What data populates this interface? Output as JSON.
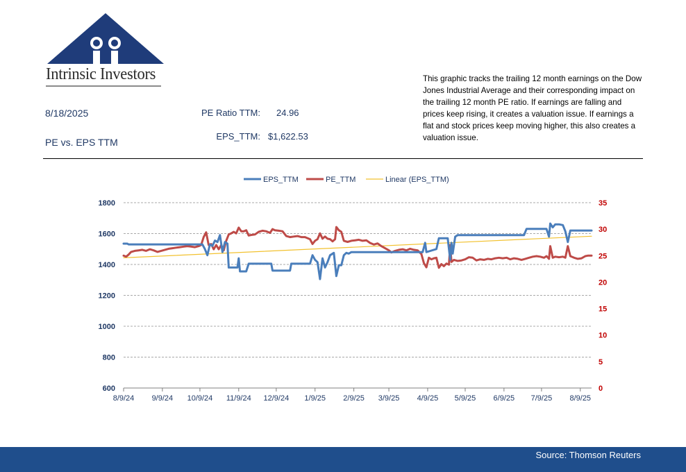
{
  "logo": {
    "text": "Intrinsic Investors"
  },
  "header": {
    "date": "8/18/2025",
    "subtitle": "PE vs. EPS TTM",
    "pe_label": "PE Ratio TTM:",
    "pe_value": "24.96",
    "eps_label": "EPS_TTM:",
    "eps_value": "$1,622.53",
    "description": "This graphic tracks the trailing 12 month earnings on the Dow Jones Industrial Average and their corresponding impact on the trailing 12 month PE ratio.  If earnings are falling and prices keep rising, it creates a valuation issue.  If earnings a flat and stock prices keep moving higher, this also creates a valuation issue."
  },
  "footer": {
    "source": "Source: Thomson Reuters"
  },
  "colors": {
    "eps": "#4a7ebb",
    "pe": "#be4b48",
    "trend": "#f2c12e",
    "axis_left": "#1f3864",
    "axis_right": "#c00000",
    "footer": "#1f4e8c"
  },
  "chart_data": {
    "type": "line",
    "legend_position": "top",
    "grid": true,
    "x_range": [
      "2024-08-09",
      "2025-08-18"
    ],
    "x_ticks": [
      "8/9/24",
      "9/9/24",
      "10/9/24",
      "11/9/24",
      "12/9/24",
      "1/9/25",
      "2/9/25",
      "3/9/25",
      "4/9/25",
      "5/9/25",
      "6/9/25",
      "7/9/25",
      "8/9/25"
    ],
    "x_tick_dates": [
      "2024-08-09",
      "2024-09-09",
      "2024-10-09",
      "2024-11-09",
      "2024-12-09",
      "2025-01-09",
      "2025-02-09",
      "2025-03-09",
      "2025-04-09",
      "2025-05-09",
      "2025-06-09",
      "2025-07-09",
      "2025-08-09"
    ],
    "y_left": {
      "min": 600,
      "max": 1800,
      "ticks": [
        600,
        800,
        1000,
        1200,
        1400,
        1600,
        1800
      ]
    },
    "y_right": {
      "min": 0,
      "max": 35,
      "ticks": [
        0,
        5,
        10,
        15,
        20,
        25,
        30,
        35
      ]
    },
    "series": [
      {
        "name": "EPS_TTM",
        "axis": "left",
        "color": "#4a7ebb",
        "points": [
          [
            "2024-08-09",
            1535
          ],
          [
            "2024-08-12",
            1535
          ],
          [
            "2024-08-13",
            1530
          ],
          [
            "2024-08-20",
            1530
          ],
          [
            "2024-09-01",
            1530
          ],
          [
            "2024-09-15",
            1530
          ],
          [
            "2024-10-01",
            1530
          ],
          [
            "2024-10-11",
            1530
          ],
          [
            "2024-10-13",
            1500
          ],
          [
            "2024-10-15",
            1460
          ],
          [
            "2024-10-17",
            1530
          ],
          [
            "2024-10-19",
            1520
          ],
          [
            "2024-10-21",
            1555
          ],
          [
            "2024-10-23",
            1545
          ],
          [
            "2024-10-25",
            1590
          ],
          [
            "2024-10-27",
            1480
          ],
          [
            "2024-10-29",
            1545
          ],
          [
            "2024-10-31",
            1535
          ],
          [
            "2024-11-01",
            1380
          ],
          [
            "2024-11-05",
            1380
          ],
          [
            "2024-11-08",
            1380
          ],
          [
            "2024-11-09",
            1440
          ],
          [
            "2024-11-10",
            1355
          ],
          [
            "2024-11-15",
            1355
          ],
          [
            "2024-11-17",
            1405
          ],
          [
            "2024-11-30",
            1405
          ],
          [
            "2024-12-05",
            1405
          ],
          [
            "2024-12-06",
            1360
          ],
          [
            "2024-12-20",
            1360
          ],
          [
            "2024-12-21",
            1405
          ],
          [
            "2024-12-31",
            1405
          ],
          [
            "2025-01-05",
            1405
          ],
          [
            "2025-01-07",
            1460
          ],
          [
            "2025-01-09",
            1430
          ],
          [
            "2025-01-11",
            1415
          ],
          [
            "2025-01-13",
            1305
          ],
          [
            "2025-01-15",
            1440
          ],
          [
            "2025-01-17",
            1380
          ],
          [
            "2025-01-19",
            1415
          ],
          [
            "2025-01-21",
            1460
          ],
          [
            "2025-01-24",
            1475
          ],
          [
            "2025-01-26",
            1325
          ],
          [
            "2025-01-28",
            1395
          ],
          [
            "2025-01-30",
            1395
          ],
          [
            "2025-02-01",
            1460
          ],
          [
            "2025-02-03",
            1475
          ],
          [
            "2025-02-05",
            1470
          ],
          [
            "2025-02-07",
            1480
          ],
          [
            "2025-02-15",
            1480
          ],
          [
            "2025-03-01",
            1480
          ],
          [
            "2025-03-15",
            1480
          ],
          [
            "2025-04-01",
            1480
          ],
          [
            "2025-04-05",
            1480
          ],
          [
            "2025-04-07",
            1540
          ],
          [
            "2025-04-08",
            1480
          ],
          [
            "2025-04-12",
            1490
          ],
          [
            "2025-04-16",
            1500
          ],
          [
            "2025-04-18",
            1570
          ],
          [
            "2025-04-22",
            1570
          ],
          [
            "2025-04-25",
            1570
          ],
          [
            "2025-04-27",
            1430
          ],
          [
            "2025-04-28",
            1540
          ],
          [
            "2025-04-29",
            1470
          ],
          [
            "2025-05-01",
            1580
          ],
          [
            "2025-05-03",
            1590
          ],
          [
            "2025-05-15",
            1590
          ],
          [
            "2025-06-01",
            1590
          ],
          [
            "2025-06-15",
            1590
          ],
          [
            "2025-06-25",
            1590
          ],
          [
            "2025-06-27",
            1630
          ],
          [
            "2025-07-10",
            1630
          ],
          [
            "2025-07-13",
            1630
          ],
          [
            "2025-07-15",
            1580
          ],
          [
            "2025-07-16",
            1665
          ],
          [
            "2025-07-18",
            1640
          ],
          [
            "2025-07-20",
            1660
          ],
          [
            "2025-07-23",
            1660
          ],
          [
            "2025-07-26",
            1655
          ],
          [
            "2025-07-28",
            1615
          ],
          [
            "2025-07-30",
            1545
          ],
          [
            "2025-08-01",
            1620
          ],
          [
            "2025-08-10",
            1620
          ],
          [
            "2025-08-18",
            1620
          ]
        ]
      },
      {
        "name": "PE_TTM",
        "axis": "right",
        "color": "#be4b48",
        "points": [
          [
            "2024-08-09",
            25.0
          ],
          [
            "2024-08-11",
            24.8
          ],
          [
            "2024-08-13",
            25.2
          ],
          [
            "2024-08-15",
            25.7
          ],
          [
            "2024-08-18",
            25.9
          ],
          [
            "2024-08-21",
            26.0
          ],
          [
            "2024-08-24",
            26.1
          ],
          [
            "2024-08-27",
            25.9
          ],
          [
            "2024-08-30",
            26.2
          ],
          [
            "2024-09-02",
            26.0
          ],
          [
            "2024-09-05",
            25.7
          ],
          [
            "2024-09-08",
            25.9
          ],
          [
            "2024-09-11",
            26.1
          ],
          [
            "2024-09-14",
            26.3
          ],
          [
            "2024-09-17",
            26.4
          ],
          [
            "2024-09-20",
            26.5
          ],
          [
            "2024-09-23",
            26.6
          ],
          [
            "2024-09-26",
            26.7
          ],
          [
            "2024-09-29",
            26.8
          ],
          [
            "2024-10-02",
            26.7
          ],
          [
            "2024-10-05",
            26.6
          ],
          [
            "2024-10-08",
            26.8
          ],
          [
            "2024-10-10",
            27.0
          ],
          [
            "2024-10-12",
            28.5
          ],
          [
            "2024-10-14",
            29.4
          ],
          [
            "2024-10-16",
            27.0
          ],
          [
            "2024-10-18",
            27.2
          ],
          [
            "2024-10-20",
            26.2
          ],
          [
            "2024-10-22",
            27.0
          ],
          [
            "2024-10-24",
            26.2
          ],
          [
            "2024-10-26",
            27.0
          ],
          [
            "2024-10-28",
            26.0
          ],
          [
            "2024-10-30",
            27.8
          ],
          [
            "2024-11-01",
            29.0
          ],
          [
            "2024-11-03",
            29.2
          ],
          [
            "2024-11-05",
            29.5
          ],
          [
            "2024-11-07",
            29.2
          ],
          [
            "2024-11-09",
            30.3
          ],
          [
            "2024-11-11",
            29.6
          ],
          [
            "2024-11-13",
            29.6
          ],
          [
            "2024-11-15",
            29.8
          ],
          [
            "2024-11-17",
            28.8
          ],
          [
            "2024-11-19",
            28.9
          ],
          [
            "2024-11-22",
            29.0
          ],
          [
            "2024-11-25",
            29.5
          ],
          [
            "2024-11-28",
            29.7
          ],
          [
            "2024-12-01",
            29.6
          ],
          [
            "2024-12-04",
            29.3
          ],
          [
            "2024-12-06",
            30.0
          ],
          [
            "2024-12-08",
            29.8
          ],
          [
            "2024-12-11",
            29.7
          ],
          [
            "2024-12-14",
            29.6
          ],
          [
            "2024-12-17",
            28.7
          ],
          [
            "2024-12-20",
            28.5
          ],
          [
            "2024-12-23",
            28.6
          ],
          [
            "2024-12-26",
            28.7
          ],
          [
            "2024-12-29",
            28.5
          ],
          [
            "2025-01-01",
            28.5
          ],
          [
            "2025-01-03",
            28.3
          ],
          [
            "2025-01-05",
            28.1
          ],
          [
            "2025-01-07",
            27.2
          ],
          [
            "2025-01-09",
            27.8
          ],
          [
            "2025-01-11",
            28.1
          ],
          [
            "2025-01-13",
            29.2
          ],
          [
            "2025-01-15",
            28.2
          ],
          [
            "2025-01-17",
            28.6
          ],
          [
            "2025-01-19",
            28.2
          ],
          [
            "2025-01-21",
            28.1
          ],
          [
            "2025-01-23",
            27.7
          ],
          [
            "2025-01-25",
            28.1
          ],
          [
            "2025-01-26",
            30.4
          ],
          [
            "2025-01-28",
            29.8
          ],
          [
            "2025-01-30",
            29.5
          ],
          [
            "2025-02-01",
            27.8
          ],
          [
            "2025-02-04",
            27.6
          ],
          [
            "2025-02-07",
            27.8
          ],
          [
            "2025-02-10",
            27.9
          ],
          [
            "2025-02-13",
            28.0
          ],
          [
            "2025-02-16",
            27.8
          ],
          [
            "2025-02-19",
            27.9
          ],
          [
            "2025-02-22",
            27.4
          ],
          [
            "2025-02-25",
            27.1
          ],
          [
            "2025-02-28",
            27.3
          ],
          [
            "2025-03-03",
            26.8
          ],
          [
            "2025-03-06",
            26.4
          ],
          [
            "2025-03-09",
            26.0
          ],
          [
            "2025-03-11",
            25.6
          ],
          [
            "2025-03-14",
            25.9
          ],
          [
            "2025-03-17",
            26.1
          ],
          [
            "2025-03-20",
            26.2
          ],
          [
            "2025-03-23",
            26.0
          ],
          [
            "2025-03-26",
            26.3
          ],
          [
            "2025-03-29",
            26.1
          ],
          [
            "2025-04-01",
            26.0
          ],
          [
            "2025-04-04",
            25.3
          ],
          [
            "2025-04-06",
            23.6
          ],
          [
            "2025-04-08",
            22.8
          ],
          [
            "2025-04-10",
            24.6
          ],
          [
            "2025-04-12",
            24.3
          ],
          [
            "2025-04-14",
            24.5
          ],
          [
            "2025-04-16",
            24.6
          ],
          [
            "2025-04-18",
            22.7
          ],
          [
            "2025-04-20",
            23.4
          ],
          [
            "2025-04-22",
            23.0
          ],
          [
            "2025-04-24",
            23.5
          ],
          [
            "2025-04-26",
            23.3
          ],
          [
            "2025-04-27",
            27.0
          ],
          [
            "2025-04-28",
            23.8
          ],
          [
            "2025-04-30",
            24.2
          ],
          [
            "2025-05-03",
            24.0
          ],
          [
            "2025-05-06",
            24.1
          ],
          [
            "2025-05-09",
            24.3
          ],
          [
            "2025-05-12",
            24.7
          ],
          [
            "2025-05-15",
            24.6
          ],
          [
            "2025-05-18",
            24.1
          ],
          [
            "2025-05-21",
            24.3
          ],
          [
            "2025-05-24",
            24.2
          ],
          [
            "2025-05-27",
            24.4
          ],
          [
            "2025-05-30",
            24.3
          ],
          [
            "2025-06-02",
            24.5
          ],
          [
            "2025-06-05",
            24.6
          ],
          [
            "2025-06-08",
            24.5
          ],
          [
            "2025-06-11",
            24.6
          ],
          [
            "2025-06-14",
            24.3
          ],
          [
            "2025-06-17",
            24.5
          ],
          [
            "2025-06-20",
            24.4
          ],
          [
            "2025-06-23",
            24.2
          ],
          [
            "2025-06-26",
            24.4
          ],
          [
            "2025-06-29",
            24.6
          ],
          [
            "2025-07-02",
            24.8
          ],
          [
            "2025-07-05",
            24.9
          ],
          [
            "2025-07-08",
            24.8
          ],
          [
            "2025-07-11",
            24.6
          ],
          [
            "2025-07-13",
            24.9
          ],
          [
            "2025-07-15",
            24.4
          ],
          [
            "2025-07-16",
            26.8
          ],
          [
            "2025-07-18",
            24.6
          ],
          [
            "2025-07-20",
            24.8
          ],
          [
            "2025-07-23",
            24.7
          ],
          [
            "2025-07-26",
            24.8
          ],
          [
            "2025-07-28",
            24.6
          ],
          [
            "2025-07-30",
            26.8
          ],
          [
            "2025-08-01",
            24.9
          ],
          [
            "2025-08-04",
            24.6
          ],
          [
            "2025-08-07",
            24.4
          ],
          [
            "2025-08-10",
            24.5
          ],
          [
            "2025-08-13",
            24.9
          ],
          [
            "2025-08-15",
            25.0
          ],
          [
            "2025-08-18",
            25.0
          ]
        ]
      },
      {
        "name": "Linear (EPS_TTM)",
        "axis": "left",
        "color": "#f2c12e",
        "points": [
          [
            "2024-08-09",
            1443
          ],
          [
            "2025-08-18",
            1583
          ]
        ]
      }
    ]
  }
}
